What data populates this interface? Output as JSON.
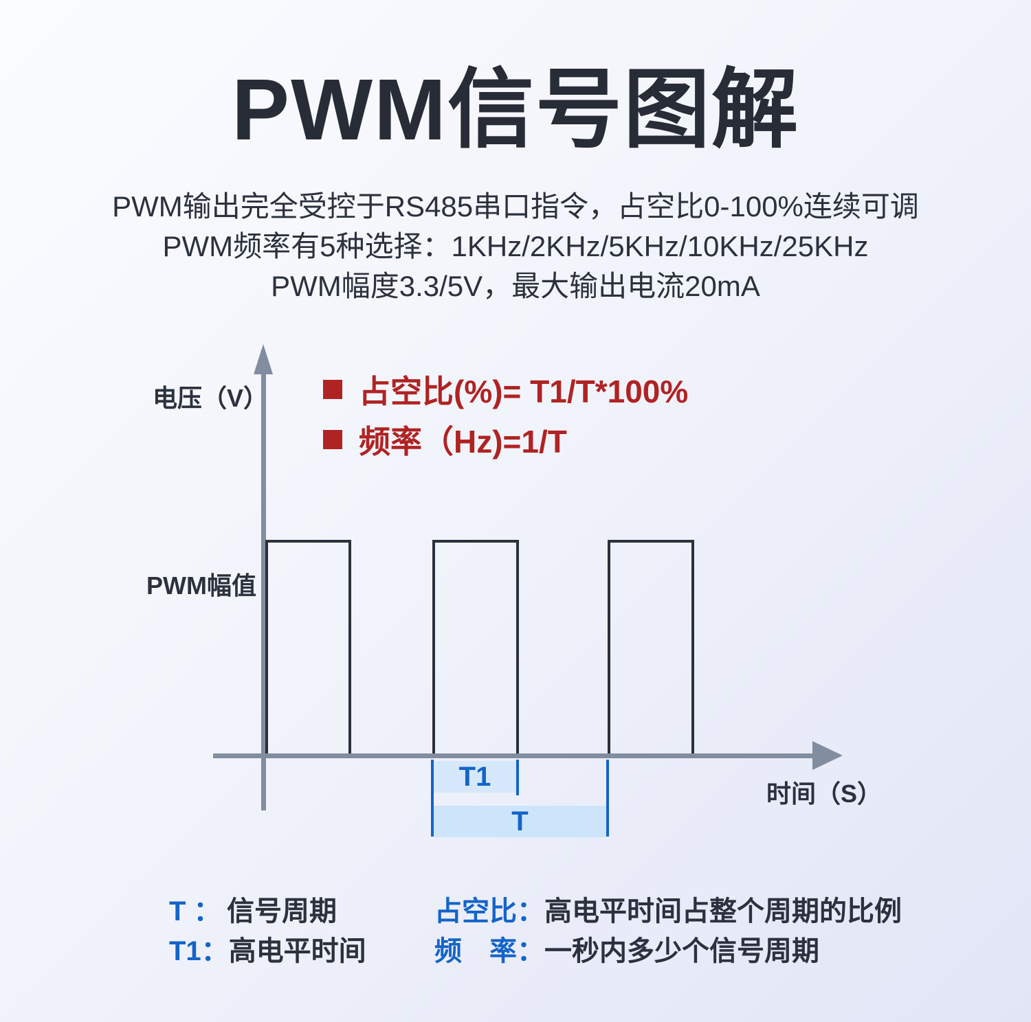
{
  "title": "PWM信号图解",
  "description": {
    "lines": [
      "PWM输出完全受控于RS485串口指令，占空比0-100%连续可调",
      "PWM频率有5种选择：1KHz/2KHz/5KHz/10KHz/25KHz",
      "PWM幅度3.3/5V，最大输出电流20mA"
    ]
  },
  "formulas": {
    "items": [
      {
        "text": "占空比(%)= T1/T*100%"
      },
      {
        "text": "频率（Hz)=1/T"
      }
    ]
  },
  "diagram": {
    "y_axis_label": "电压（V）",
    "amplitude_label": "PWM幅值",
    "x_axis_label": "时间（S）",
    "t1_label": "T1",
    "t_label": "T"
  },
  "legend": {
    "items": [
      {
        "key": "T ：",
        "value": "信号周期"
      },
      {
        "key": "T1：",
        "value": "高电平时间"
      },
      {
        "key": "占空比：",
        "value": "高电平时间占整个周期的比例"
      },
      {
        "key": "频　率：",
        "value": "一秒内多少个信号周期"
      }
    ]
  },
  "colors": {
    "accent_red": "#b02323",
    "accent_blue": "#1464c8",
    "highlight_blue_t1": "#d6e9fc",
    "highlight_blue_t": "#cde5fb",
    "axis_gray": "#838da0",
    "wave_dark": "#2a303c",
    "text_dark": "#2b313d"
  }
}
